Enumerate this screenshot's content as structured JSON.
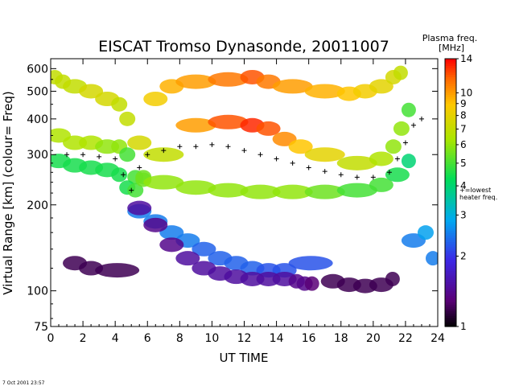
{
  "chart_data": {
    "type": "heatmap",
    "title": "EISCAT Tromso Dynasonde,  20011007",
    "xlabel": "UT TIME",
    "ylabel": "Virtual Range [km]   (colour= Freq)",
    "x_ticks": [
      0,
      2,
      4,
      6,
      8,
      10,
      12,
      14,
      16,
      18,
      20,
      22,
      24
    ],
    "xlim": [
      0,
      24
    ],
    "y_scale": "log",
    "ylim": [
      75,
      650
    ],
    "y_ticks": [
      75,
      100,
      200,
      300,
      400,
      500,
      600
    ],
    "colorbar": {
      "title": "Plasma freq.",
      "unit": "[MHz]",
      "scale": "log",
      "range": [
        1,
        14
      ],
      "ticks": [
        1,
        2,
        3,
        4,
        5,
        6,
        7,
        8,
        9,
        10,
        14
      ],
      "marker_label": "+=lowest heater freq.",
      "marker_label_lines": [
        "+=lowest",
        "heater freq."
      ],
      "marker_value": 4
    },
    "layers": [
      {
        "name": "F2 upper",
        "points": [
          [
            0,
            560,
            7
          ],
          [
            0.5,
            540,
            7
          ],
          [
            1,
            520,
            7
          ],
          [
            2,
            500,
            7.5
          ],
          [
            3,
            470,
            7.5
          ],
          [
            4,
            450,
            7
          ],
          [
            4.5,
            400,
            7
          ],
          [
            5,
            330,
            7.5
          ],
          [
            6,
            470,
            8.5
          ],
          [
            7,
            520,
            9.5
          ],
          [
            8,
            540,
            10
          ],
          [
            10,
            550,
            11
          ],
          [
            12,
            560,
            12
          ],
          [
            13,
            540,
            11
          ],
          [
            14,
            520,
            10
          ],
          [
            16,
            500,
            9.5
          ],
          [
            18,
            490,
            9
          ],
          [
            19,
            500,
            8.5
          ],
          [
            20,
            520,
            8
          ],
          [
            21,
            560,
            7.5
          ],
          [
            21.5,
            580,
            7
          ]
        ]
      },
      {
        "name": "F2 main",
        "points": [
          [
            0,
            350,
            6.5
          ],
          [
            1,
            330,
            6.5
          ],
          [
            2,
            330,
            6.5
          ],
          [
            3,
            320,
            6
          ],
          [
            4,
            320,
            6
          ],
          [
            4.5,
            300,
            5
          ],
          [
            5,
            250,
            5
          ],
          [
            5.5,
            250,
            5.5
          ],
          [
            6,
            300,
            7
          ],
          [
            8,
            380,
            10
          ],
          [
            10,
            390,
            12
          ],
          [
            12,
            380,
            13
          ],
          [
            13,
            370,
            12
          ],
          [
            14,
            340,
            10.5
          ],
          [
            15,
            320,
            9
          ],
          [
            16,
            300,
            8
          ],
          [
            18,
            280,
            7
          ],
          [
            20,
            290,
            6.5
          ],
          [
            21,
            320,
            6
          ],
          [
            21.5,
            370,
            6
          ],
          [
            22,
            430,
            5
          ]
        ]
      },
      {
        "name": "F-layer base",
        "points": [
          [
            0,
            285,
            4.5
          ],
          [
            1,
            275,
            4.5
          ],
          [
            2,
            270,
            4.5
          ],
          [
            3,
            265,
            4.5
          ],
          [
            4,
            255,
            4.5
          ],
          [
            4.5,
            230,
            4.5
          ],
          [
            5,
            225,
            5
          ],
          [
            5.5,
            245,
            5.5
          ],
          [
            6,
            240,
            6
          ],
          [
            8,
            230,
            6
          ],
          [
            10,
            225,
            6
          ],
          [
            12,
            222,
            6
          ],
          [
            14,
            222,
            6
          ],
          [
            16,
            222,
            5.5
          ],
          [
            18,
            225,
            5
          ],
          [
            20,
            235,
            5
          ],
          [
            21,
            255,
            4.5
          ],
          [
            22,
            285,
            4
          ]
        ]
      },
      {
        "name": "E/F1 blue",
        "points": [
          [
            5,
            190,
            2.5
          ],
          [
            6,
            175,
            2.5
          ],
          [
            7,
            160,
            2.5
          ],
          [
            8,
            150,
            2.5
          ],
          [
            9,
            140,
            2.3
          ],
          [
            10,
            130,
            2.3
          ],
          [
            11,
            125,
            2.3
          ],
          [
            12,
            120,
            2.3
          ],
          [
            13,
            118,
            2.2
          ],
          [
            14,
            118,
            2.2
          ],
          [
            15,
            125,
            2.2
          ],
          [
            22,
            150,
            2.5
          ],
          [
            23,
            160,
            2.8
          ],
          [
            23.5,
            130,
            2.5
          ]
        ]
      },
      {
        "name": "E purple",
        "points": [
          [
            5,
            195,
            1.5
          ],
          [
            6,
            170,
            1.4
          ],
          [
            7,
            145,
            1.4
          ],
          [
            8,
            130,
            1.5
          ],
          [
            9,
            120,
            1.5
          ],
          [
            10,
            115,
            1.5
          ],
          [
            11,
            112,
            1.5
          ],
          [
            12,
            110,
            1.5
          ],
          [
            13,
            110,
            1.5
          ],
          [
            14,
            110,
            1.5
          ],
          [
            15,
            108,
            1.4
          ],
          [
            15.5,
            106,
            1.4
          ],
          [
            16,
            106,
            1.3
          ],
          [
            1,
            125,
            1.2
          ],
          [
            2,
            120,
            1.2
          ],
          [
            3,
            118,
            1.2
          ],
          [
            17,
            108,
            1.2
          ],
          [
            18,
            105,
            1.2
          ],
          [
            19,
            104,
            1.2
          ],
          [
            20,
            105,
            1.2
          ],
          [
            21,
            110,
            1.2
          ]
        ]
      }
    ],
    "heater_marker_curve": [
      [
        0,
        310
      ],
      [
        1,
        300
      ],
      [
        2,
        300
      ],
      [
        3,
        295
      ],
      [
        4,
        290
      ],
      [
        4.5,
        255
      ],
      [
        5,
        225
      ],
      [
        5.5,
        270
      ],
      [
        6,
        300
      ],
      [
        7,
        310
      ],
      [
        8,
        320
      ],
      [
        9,
        320
      ],
      [
        10,
        325
      ],
      [
        11,
        320
      ],
      [
        12,
        310
      ],
      [
        13,
        300
      ],
      [
        14,
        290
      ],
      [
        15,
        280
      ],
      [
        16,
        270
      ],
      [
        17,
        262
      ],
      [
        18,
        255
      ],
      [
        19,
        250
      ],
      [
        20,
        250
      ],
      [
        21,
        260
      ],
      [
        21.5,
        290
      ],
      [
        22,
        330
      ],
      [
        22.5,
        380
      ],
      [
        23,
        400
      ]
    ]
  },
  "footer": {
    "timestamp": "7 Oct 2001 23:57"
  }
}
